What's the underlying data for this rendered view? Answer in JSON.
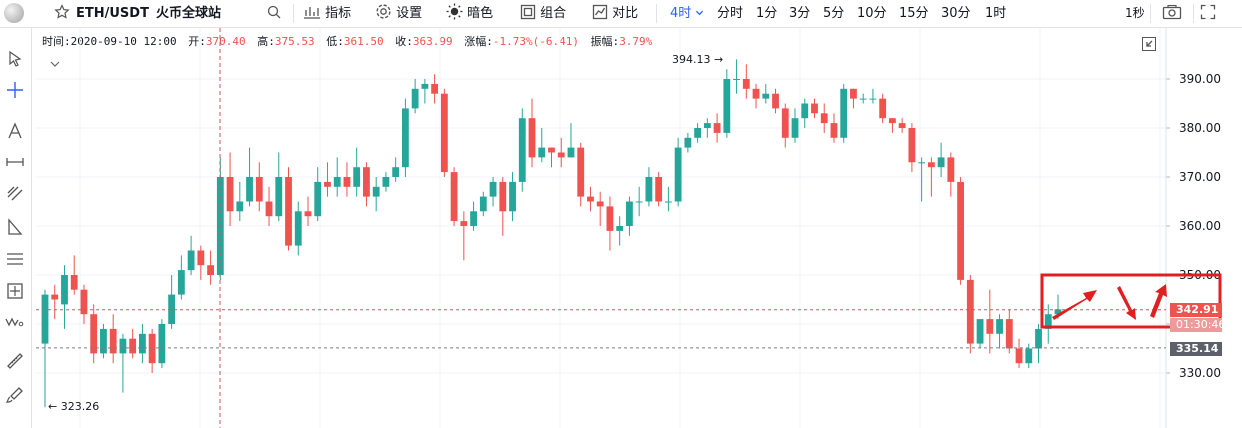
{
  "toolbar": {
    "symbol": "ETH/USDT",
    "exchange": "火币全球站",
    "search_icon": "search-icon",
    "indicators": "指标",
    "settings": "设置",
    "dark_mode": "暗色",
    "combo": "组合",
    "compare": "对比",
    "interval_active": "4时",
    "intervals": [
      "分时",
      "1分",
      "3分",
      "5分",
      "10分",
      "15分",
      "30分",
      "1时"
    ],
    "refresh": "1秒",
    "accent_color": "#2962ff"
  },
  "infobar": {
    "time_label": "时间:",
    "time": "2020-09-10 12:00",
    "open_label": "开:",
    "open": "370.40",
    "high_label": "高:",
    "high": "375.53",
    "low_label": "低:",
    "low": "361.50",
    "close_label": "收:",
    "close": "363.99",
    "change_label": "涨幅:",
    "change": "-1.73%(-6.41)",
    "amplitude_label": "振幅:",
    "amplitude": "3.79%"
  },
  "chart_data": {
    "type": "candlestick",
    "up_color": "#26a69a",
    "down_color": "#ef5350",
    "ylim": [
      320,
      398
    ],
    "y_ticks": [
      "330.00",
      "340.00",
      "350.00",
      "360.00",
      "370.00",
      "380.00",
      "390.00"
    ],
    "grid": true,
    "max_label": "394.13",
    "min_label": "323.26",
    "last_price": "342.91",
    "countdown": "01:30:46",
    "level_price": "335.14",
    "candles": [
      [
        336,
        346,
        323,
        347
      ],
      [
        346,
        345,
        341,
        348
      ],
      [
        344,
        350,
        339,
        352
      ],
      [
        350,
        347,
        346,
        354
      ],
      [
        347,
        342,
        340,
        348
      ],
      [
        342,
        334,
        332,
        344
      ],
      [
        334,
        339,
        333,
        340
      ],
      [
        339,
        334,
        332,
        342
      ],
      [
        334,
        337,
        326,
        338
      ],
      [
        337,
        334,
        333,
        339
      ],
      [
        334,
        338,
        332,
        340
      ],
      [
        338,
        332,
        330,
        339
      ],
      [
        332,
        340,
        331,
        341
      ],
      [
        340,
        346,
        339,
        350
      ],
      [
        346,
        351,
        345,
        354
      ],
      [
        351,
        355,
        350,
        358
      ],
      [
        355,
        352,
        349,
        356
      ],
      [
        352,
        350,
        348,
        355
      ],
      [
        350,
        370,
        349,
        374
      ],
      [
        370,
        363,
        360,
        375
      ],
      [
        363,
        365,
        361,
        369
      ],
      [
        365,
        370,
        364,
        376
      ],
      [
        370,
        365,
        363,
        373
      ],
      [
        365,
        362,
        360,
        368
      ],
      [
        362,
        370,
        361,
        375
      ],
      [
        370,
        356,
        355,
        372
      ],
      [
        356,
        363,
        354,
        365
      ],
      [
        363,
        362,
        360,
        366
      ],
      [
        362,
        369,
        361,
        372
      ],
      [
        369,
        368,
        366,
        373
      ],
      [
        368,
        370,
        366,
        374
      ],
      [
        370,
        368,
        366,
        373
      ],
      [
        368,
        372,
        366,
        376
      ],
      [
        372,
        366,
        364,
        373
      ],
      [
        366,
        368,
        363,
        370
      ],
      [
        368,
        370,
        367,
        371
      ],
      [
        370,
        372,
        369,
        374
      ],
      [
        372,
        384,
        370,
        386
      ],
      [
        384,
        388,
        383,
        390
      ],
      [
        388,
        389,
        385,
        390
      ],
      [
        389,
        387,
        385,
        391
      ],
      [
        387,
        371,
        370,
        388
      ],
      [
        371,
        361,
        360,
        372
      ],
      [
        361,
        360,
        353,
        363
      ],
      [
        360,
        363,
        359,
        365
      ],
      [
        363,
        366,
        362,
        367
      ],
      [
        366,
        369,
        364,
        370
      ],
      [
        369,
        363,
        358,
        370
      ],
      [
        363,
        369,
        361,
        371
      ],
      [
        369,
        382,
        367,
        384
      ],
      [
        382,
        374,
        372,
        386
      ],
      [
        374,
        376,
        373,
        380
      ],
      [
        376,
        375,
        372,
        376
      ],
      [
        375,
        374,
        372,
        378
      ],
      [
        374,
        376,
        374,
        381
      ],
      [
        376,
        366,
        364,
        377
      ],
      [
        366,
        365,
        363,
        368
      ],
      [
        365,
        364,
        360,
        367
      ],
      [
        364,
        359,
        355,
        366
      ],
      [
        359,
        360,
        356,
        362
      ],
      [
        360,
        365,
        358,
        366
      ],
      [
        365,
        365,
        362,
        368
      ],
      [
        365,
        370,
        364,
        372
      ],
      [
        370,
        365,
        364,
        371
      ],
      [
        365,
        365,
        363,
        368
      ],
      [
        365,
        376,
        364,
        378
      ],
      [
        376,
        378,
        375,
        379
      ],
      [
        378,
        380,
        377,
        381
      ],
      [
        380,
        381,
        378,
        382
      ],
      [
        381,
        379,
        377,
        383
      ],
      [
        379,
        390,
        378,
        392
      ],
      [
        390,
        390,
        387,
        394
      ],
      [
        390,
        388,
        386,
        393
      ],
      [
        388,
        386,
        384,
        389
      ],
      [
        386,
        387,
        385,
        389
      ],
      [
        387,
        384,
        383,
        388
      ],
      [
        384,
        378,
        376,
        385
      ],
      [
        378,
        382,
        377,
        384
      ],
      [
        382,
        385,
        380,
        386
      ],
      [
        385,
        383,
        382,
        386
      ],
      [
        383,
        381,
        379,
        385
      ],
      [
        381,
        378,
        377,
        383
      ],
      [
        378,
        388,
        377,
        389
      ],
      [
        388,
        386,
        384,
        388
      ],
      [
        386,
        386,
        385,
        387
      ],
      [
        386,
        386,
        385,
        388
      ],
      [
        386,
        382,
        381,
        387
      ],
      [
        382,
        381,
        379,
        382
      ],
      [
        381,
        380,
        379,
        382
      ],
      [
        380,
        373,
        371,
        381
      ],
      [
        373,
        373,
        365,
        374
      ],
      [
        373,
        372,
        366,
        374
      ],
      [
        372,
        374,
        370,
        377
      ],
      [
        374,
        369,
        366,
        375
      ],
      [
        369,
        349,
        348,
        370
      ],
      [
        349,
        336,
        334,
        350
      ],
      [
        336,
        341,
        335,
        341
      ],
      [
        341,
        338,
        334,
        347
      ],
      [
        338,
        341,
        335,
        342
      ],
      [
        341,
        335,
        334,
        343
      ],
      [
        335,
        332,
        331,
        337
      ],
      [
        332,
        335,
        331,
        336
      ],
      [
        335,
        339,
        332,
        340
      ],
      [
        339,
        342,
        336,
        344
      ],
      [
        342,
        343,
        341,
        346
      ]
    ]
  },
  "annotation": {
    "box_color": "#e02020"
  }
}
